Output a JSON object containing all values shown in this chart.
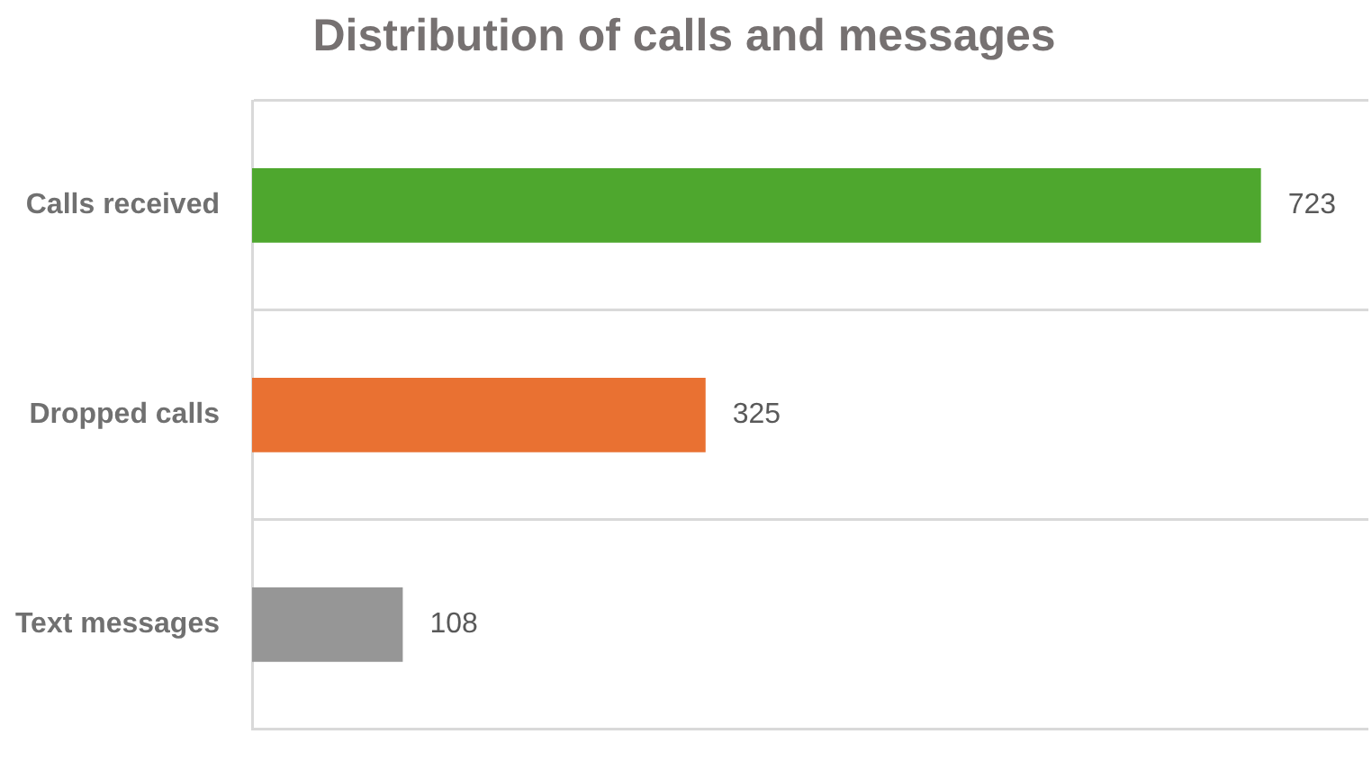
{
  "chart_data": {
    "type": "bar",
    "orientation": "horizontal",
    "title": "Distribution of calls and messages",
    "categories": [
      "Calls received",
      "Dropped calls",
      "Text messages"
    ],
    "values": [
      723,
      325,
      108
    ],
    "colors": [
      "#4ea72e",
      "#e97132",
      "#969696"
    ],
    "xlim": [
      0,
      800
    ],
    "grid": "y",
    "data_labels": true,
    "tick_labels": "y",
    "legend": false
  }
}
